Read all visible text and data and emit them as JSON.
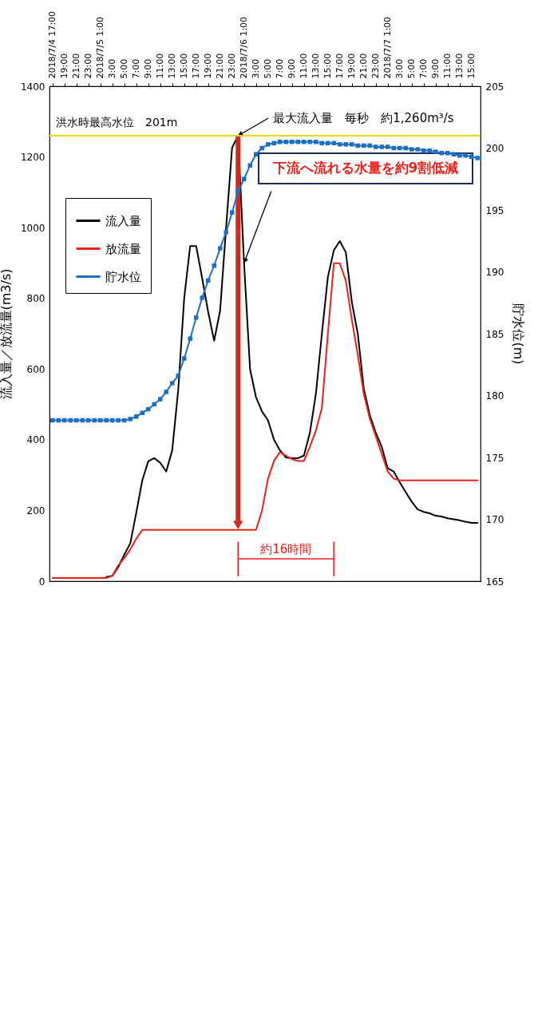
{
  "chart_data": {
    "type": "line",
    "ylabel": "流入量／放流量(m3/s)",
    "y2label": "貯水位(m)",
    "x": [
      "2018-07-04T17:00",
      "2018-07-04T18:00",
      "2018-07-04T19:00",
      "2018-07-04T20:00",
      "2018-07-04T21:00",
      "2018-07-04T22:00",
      "2018-07-04T23:00",
      "2018-07-05T00:00",
      "2018-07-05T01:00",
      "2018-07-05T02:00",
      "2018-07-05T03:00",
      "2018-07-05T04:00",
      "2018-07-05T05:00",
      "2018-07-05T06:00",
      "2018-07-05T07:00",
      "2018-07-05T08:00",
      "2018-07-05T09:00",
      "2018-07-05T10:00",
      "2018-07-05T11:00",
      "2018-07-05T12:00",
      "2018-07-05T13:00",
      "2018-07-05T14:00",
      "2018-07-05T15:00",
      "2018-07-05T16:00",
      "2018-07-05T17:00",
      "2018-07-05T18:00",
      "2018-07-05T19:00",
      "2018-07-05T20:00",
      "2018-07-05T21:00",
      "2018-07-05T22:00",
      "2018-07-05T23:00",
      "2018-07-06T00:00",
      "2018-07-06T01:00",
      "2018-07-06T02:00",
      "2018-07-06T03:00",
      "2018-07-06T04:00",
      "2018-07-06T05:00",
      "2018-07-06T06:00",
      "2018-07-06T07:00",
      "2018-07-06T08:00",
      "2018-07-06T09:00",
      "2018-07-06T10:00",
      "2018-07-06T11:00",
      "2018-07-06T12:00",
      "2018-07-06T13:00",
      "2018-07-06T14:00",
      "2018-07-06T15:00",
      "2018-07-06T16:00",
      "2018-07-06T17:00",
      "2018-07-06T18:00",
      "2018-07-06T19:00",
      "2018-07-06T20:00",
      "2018-07-06T21:00",
      "2018-07-06T22:00",
      "2018-07-06T23:00",
      "2018-07-07T00:00",
      "2018-07-07T01:00",
      "2018-07-07T02:00",
      "2018-07-07T03:00",
      "2018-07-07T04:00",
      "2018-07-07T05:00",
      "2018-07-07T06:00",
      "2018-07-07T07:00",
      "2018-07-07T08:00",
      "2018-07-07T09:00",
      "2018-07-07T10:00",
      "2018-07-07T11:00",
      "2018-07-07T12:00",
      "2018-07-07T13:00",
      "2018-07-07T14:00",
      "2018-07-07T15:00",
      "2018-07-07T16:00"
    ],
    "xlim": [
      "2018-07-04T16:30",
      "2018-07-07T16:30"
    ],
    "xticks": [
      {
        "value": "2018-07-04T17:00",
        "label": "2018/7/4 17:00"
      },
      {
        "value": "2018-07-04T19:00",
        "label": "19:00"
      },
      {
        "value": "2018-07-04T21:00",
        "label": "21:00"
      },
      {
        "value": "2018-07-04T23:00",
        "label": "23:00"
      },
      {
        "value": "2018-07-05T01:00",
        "label": "2018/7/5 1:00"
      },
      {
        "value": "2018-07-05T03:00",
        "label": "3:00"
      },
      {
        "value": "2018-07-05T05:00",
        "label": "5:00"
      },
      {
        "value": "2018-07-05T07:00",
        "label": "7:00"
      },
      {
        "value": "2018-07-05T09:00",
        "label": "9:00"
      },
      {
        "value": "2018-07-05T11:00",
        "label": "11:00"
      },
      {
        "value": "2018-07-05T13:00",
        "label": "13:00"
      },
      {
        "value": "2018-07-05T15:00",
        "label": "15:00"
      },
      {
        "value": "2018-07-05T17:00",
        "label": "17:00"
      },
      {
        "value": "2018-07-05T19:00",
        "label": "19:00"
      },
      {
        "value": "2018-07-05T21:00",
        "label": "21:00"
      },
      {
        "value": "2018-07-05T23:00",
        "label": "23:00"
      },
      {
        "value": "2018-07-06T01:00",
        "label": "2018/7/6 1:00"
      },
      {
        "value": "2018-07-06T03:00",
        "label": "3:00"
      },
      {
        "value": "2018-07-06T05:00",
        "label": "5:00"
      },
      {
        "value": "2018-07-06T07:00",
        "label": "7:00"
      },
      {
        "value": "2018-07-06T09:00",
        "label": "9:00"
      },
      {
        "value": "2018-07-06T11:00",
        "label": "11:00"
      },
      {
        "value": "2018-07-06T13:00",
        "label": "13:00"
      },
      {
        "value": "2018-07-06T15:00",
        "label": "15:00"
      },
      {
        "value": "2018-07-06T17:00",
        "label": "17:00"
      },
      {
        "value": "2018-07-06T19:00",
        "label": "19:00"
      },
      {
        "value": "2018-07-06T21:00",
        "label": "21:00"
      },
      {
        "value": "2018-07-06T23:00",
        "label": "23:00"
      },
      {
        "value": "2018-07-07T01:00",
        "label": "2018/7/7 1:00"
      },
      {
        "value": "2018-07-07T03:00",
        "label": "3:00"
      },
      {
        "value": "2018-07-07T05:00",
        "label": "5:00"
      },
      {
        "value": "2018-07-07T07:00",
        "label": "7:00"
      },
      {
        "value": "2018-07-07T09:00",
        "label": "9:00"
      },
      {
        "value": "2018-07-07T11:00",
        "label": "11:00"
      },
      {
        "value": "2018-07-07T13:00",
        "label": "13:00"
      },
      {
        "value": "2018-07-07T15:00",
        "label": "15:00"
      }
    ],
    "ylim": [
      0,
      1400
    ],
    "yticks": [
      0,
      200,
      400,
      600,
      800,
      1000,
      1200,
      1400
    ],
    "y2lim": [
      165,
      205
    ],
    "y2ticks": [
      165,
      170,
      175,
      180,
      185,
      190,
      195,
      200,
      205
    ],
    "series": [
      {
        "name": "流入量",
        "color": "#000000",
        "values": [
          null,
          null,
          null,
          null,
          null,
          null,
          null,
          null,
          null,
          12,
          15,
          40,
          75,
          107,
          194,
          285,
          339,
          348,
          335,
          310,
          370,
          540,
          800,
          948,
          948,
          857,
          762,
          680,
          765,
          1000,
          1226,
          1260,
          900,
          600,
          520,
          480,
          455,
          400,
          370,
          350,
          348,
          348,
          355,
          420,
          530,
          700,
          860,
          936,
          962,
          930,
          790,
          700,
          545,
          470,
          420,
          380,
          319,
          310,
          280,
          252,
          225,
          203,
          196,
          192,
          185,
          183,
          178,
          175,
          172,
          168,
          165,
          165
        ]
      },
      {
        "name": "放流量",
        "color": "#e8221b",
        "values": [
          9,
          9,
          9,
          9,
          9,
          9,
          9,
          9,
          9,
          9,
          15,
          45,
          65,
          90,
          120,
          145,
          145,
          145,
          145,
          145,
          145,
          145,
          145,
          145,
          145,
          145,
          145,
          145,
          145,
          145,
          145,
          145,
          145,
          145,
          145,
          200,
          290,
          340,
          365,
          355,
          345,
          340,
          340,
          380,
          426,
          490,
          700,
          899,
          899,
          850,
          740,
          640,
          530,
          460,
          410,
          360,
          310,
          290,
          285,
          285,
          285,
          285,
          285,
          285,
          285,
          285,
          285,
          285,
          285,
          285,
          285,
          285
        ]
      },
      {
        "name": "貯水位",
        "color": "#1c6fc4",
        "axis": "y2",
        "marker": "square",
        "values": [
          178,
          178,
          178,
          178,
          178,
          178,
          178,
          178,
          178,
          178,
          178,
          178,
          178,
          178.1,
          178.3,
          178.6,
          178.9,
          179.3,
          179.7,
          180.3,
          181,
          181.6,
          183,
          184.6,
          186.3,
          187.9,
          189.3,
          190.5,
          191.9,
          193.2,
          194.8,
          196.5,
          197.5,
          198.6,
          199.5,
          200,
          200.3,
          200.4,
          200.5,
          200.5,
          200.5,
          200.5,
          200.5,
          200.5,
          200.5,
          200.4,
          200.4,
          200.4,
          200.3,
          200.3,
          200.3,
          200.2,
          200.2,
          200.2,
          200.1,
          200.1,
          200.1,
          200,
          200,
          200,
          199.9,
          199.9,
          199.8,
          199.8,
          199.7,
          199.6,
          199.6,
          199.5,
          199.4,
          199.4,
          199.3,
          199.2
        ]
      }
    ],
    "ref_lines": [
      {
        "axis": "y2",
        "value": 201,
        "label": "洪水時最高水位　201m",
        "color": "#f0d800"
      }
    ],
    "annotations": [
      {
        "text": "最大流入量　毎秒　約1,260m³/s",
        "x": "2018-07-06T00:00",
        "y": 1260
      },
      {
        "text": "下流へ流れる水量を約9割低減",
        "x": "2018-07-06T01:00",
        "y": 900
      },
      "約16時間"
    ],
    "legend": "top left"
  }
}
